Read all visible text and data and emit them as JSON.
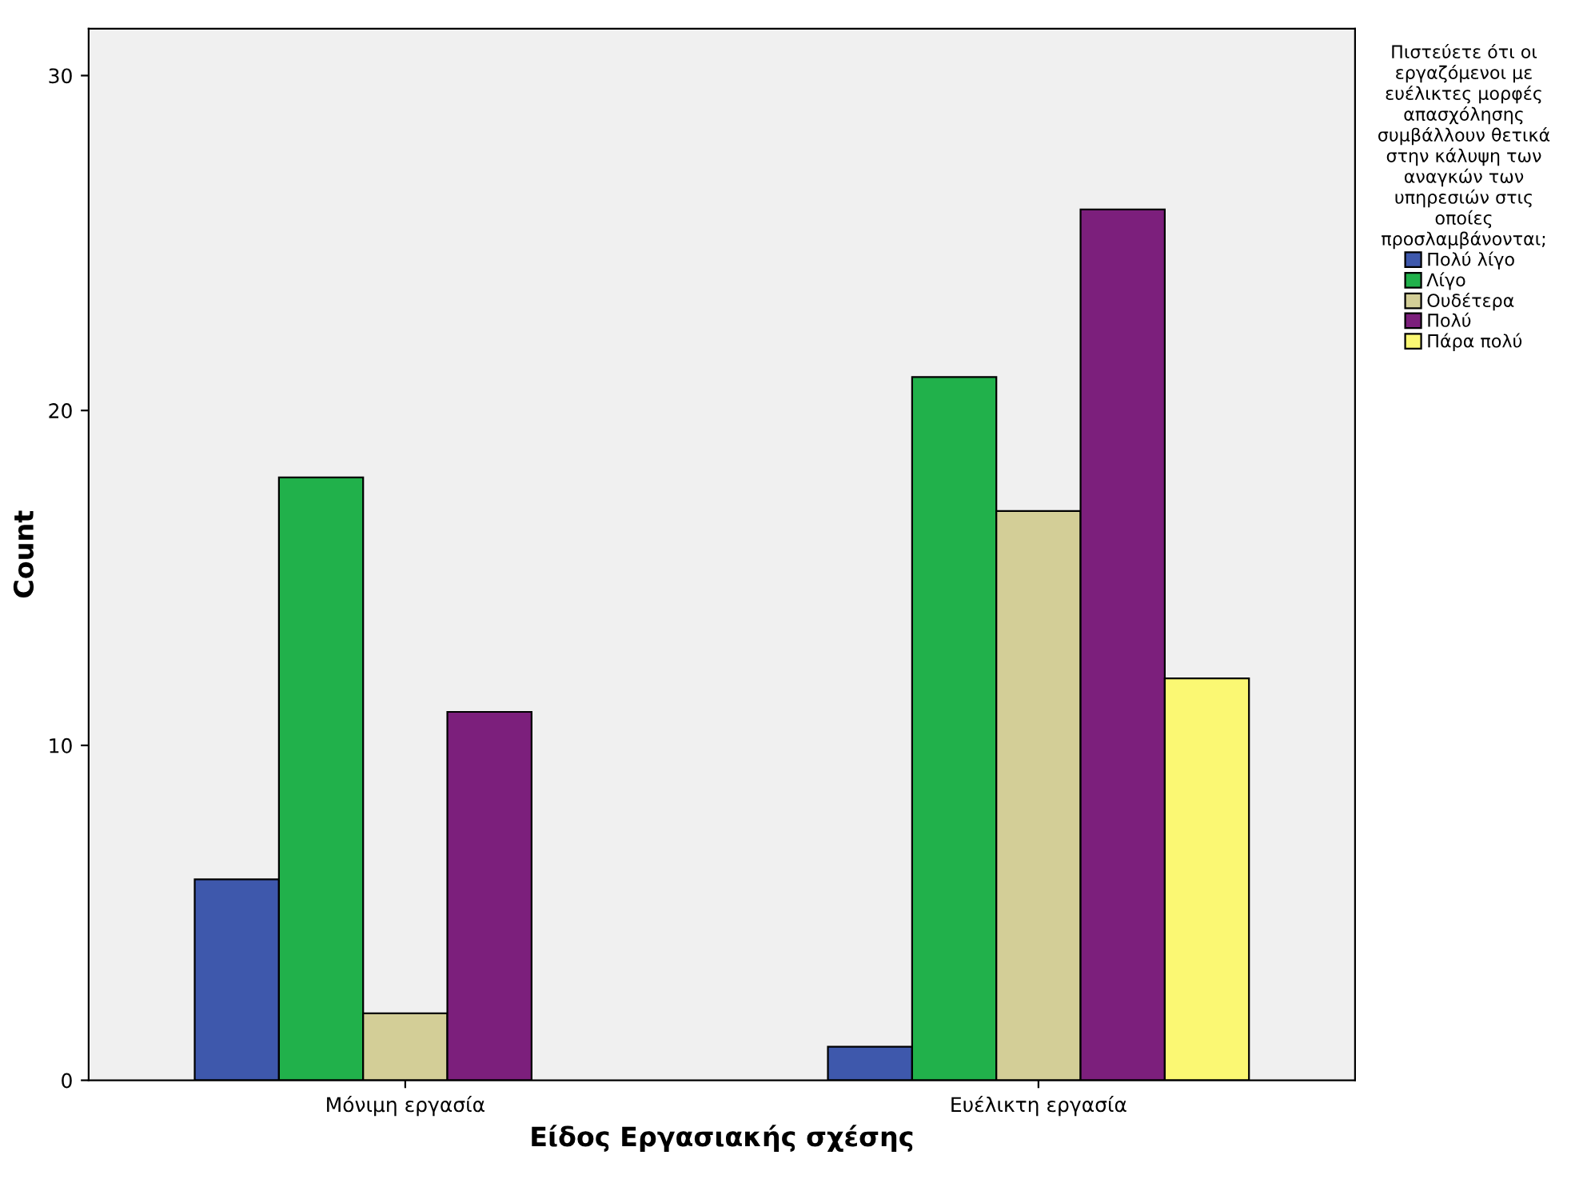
{
  "chart_data": {
    "type": "bar",
    "xlabel": "Είδος Εργασιακής σχέσης",
    "ylabel": "Count",
    "legend_title": "Πιστεύετε ότι οι\nεργαζόμενοι με\nευέλικτες μορφές\nαπασχόλησης\nσυμβάλλουν θετικά\nστην κάλυψη των\nαναγκών των\nυπηρεσιών στις\nοποίες\nπροσλαμβάνονται;",
    "categories": [
      "Μόνιμη εργασία",
      "Ευέλικτη εργασία"
    ],
    "series": [
      {
        "name": "Πολύ λίγο",
        "color": "#3e58ac",
        "values": [
          6,
          1
        ]
      },
      {
        "name": "Λίγο",
        "color": "#21b14b",
        "values": [
          18,
          21
        ]
      },
      {
        "name": "Ουδέτερα",
        "color": "#d3ce97",
        "values": [
          2,
          17
        ]
      },
      {
        "name": "Πολύ",
        "color": "#7c1f7c",
        "values": [
          11,
          26
        ]
      },
      {
        "name": "Πάρα πολύ",
        "color": "#fbf873",
        "values": [
          null,
          12
        ]
      }
    ],
    "ylim": [
      0,
      31.4
    ],
    "yticks": [
      0,
      10,
      20,
      30
    ],
    "grid": false,
    "legend": "right"
  }
}
